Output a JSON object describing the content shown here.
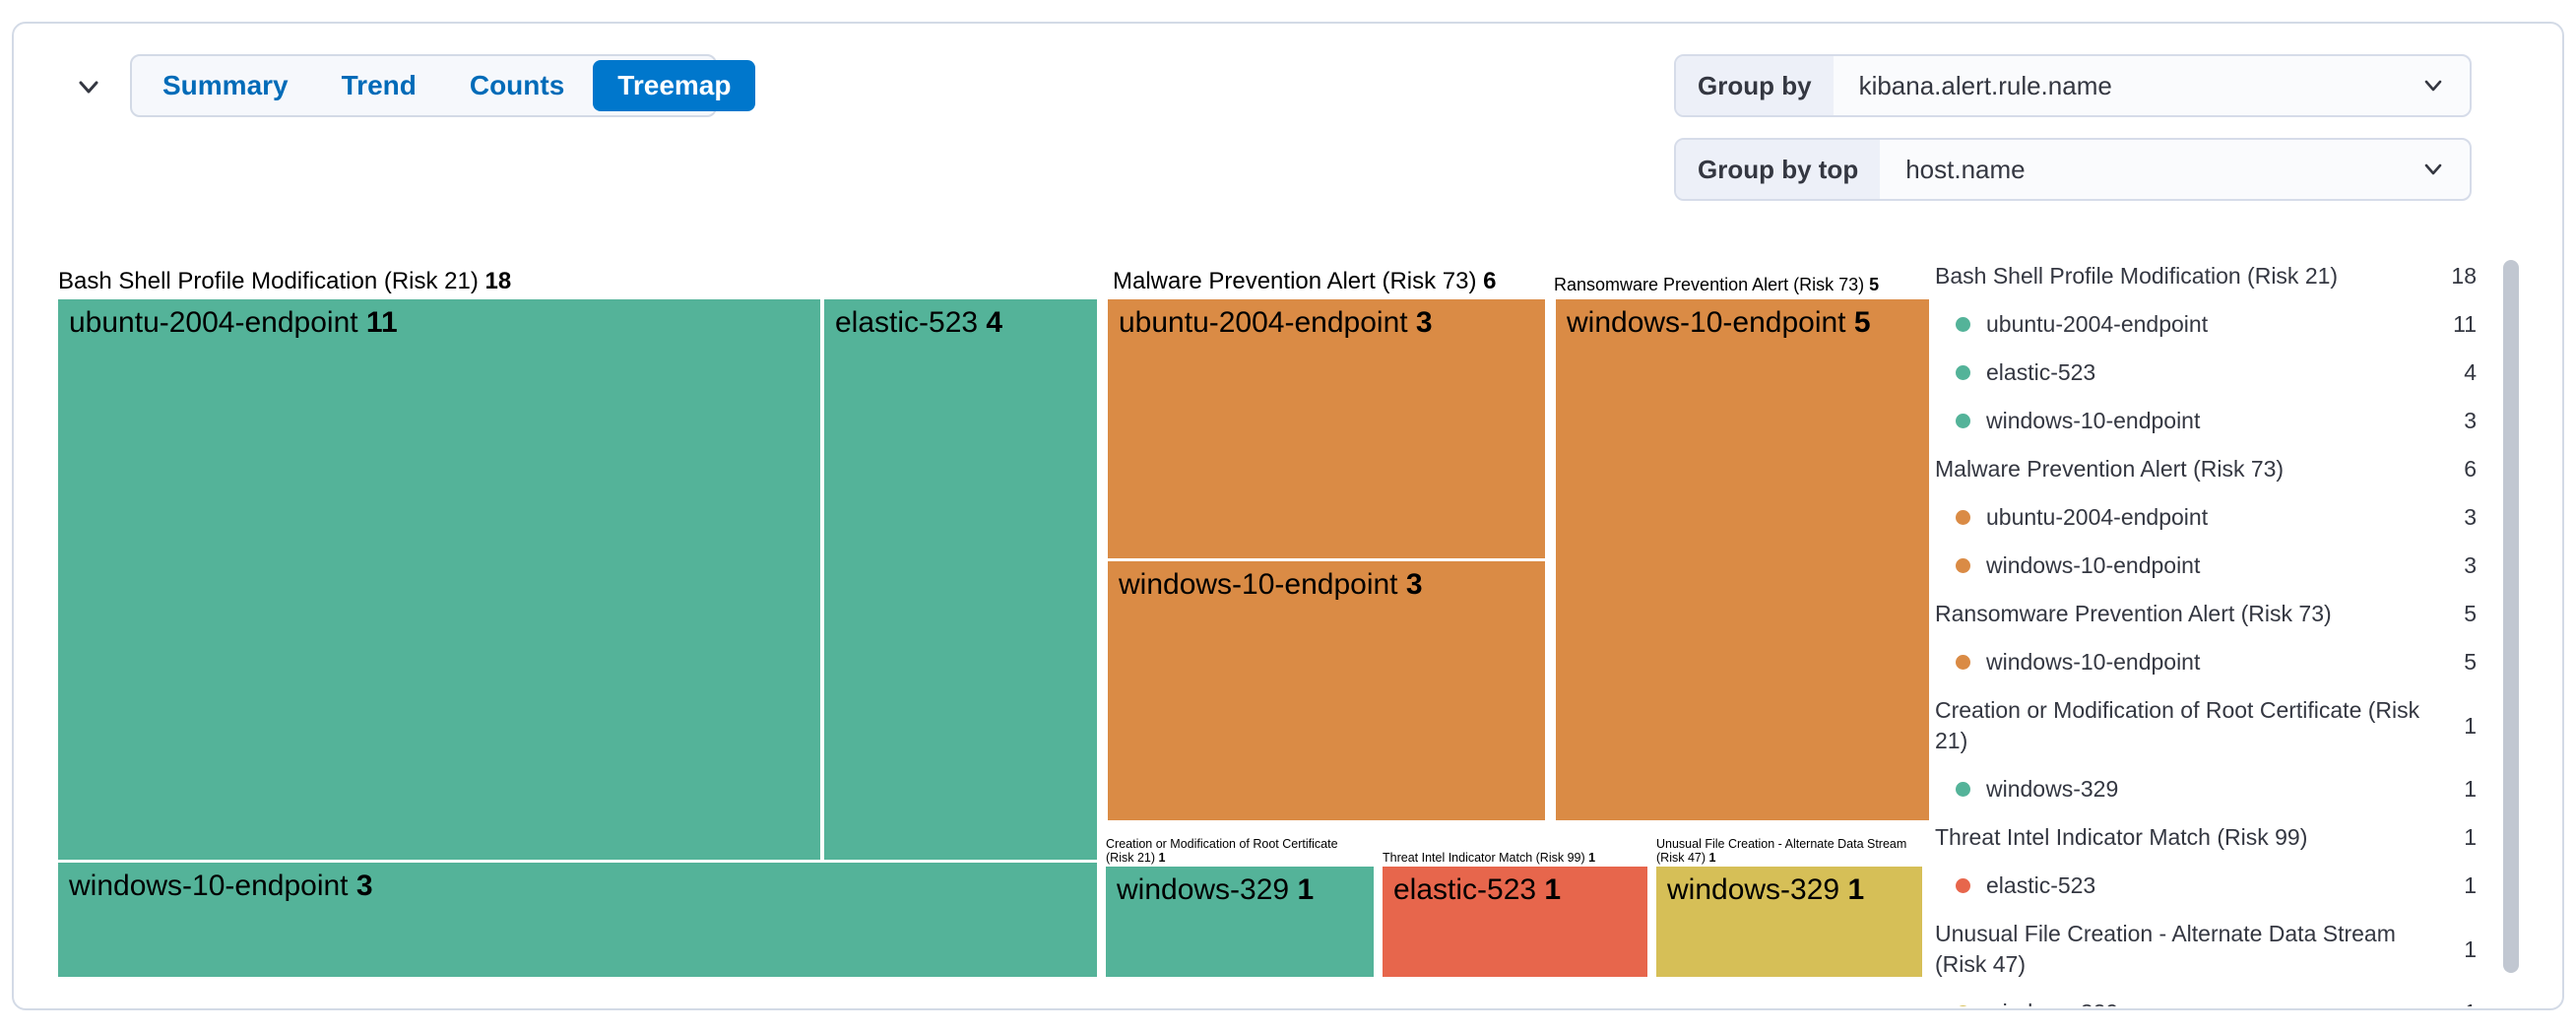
{
  "toolbar": {
    "collapse_icon": "chevron-down",
    "tabs": [
      {
        "label": "Summary",
        "active": false
      },
      {
        "label": "Trend",
        "active": false
      },
      {
        "label": "Counts",
        "active": false
      },
      {
        "label": "Treemap",
        "active": true
      }
    ]
  },
  "controls": {
    "group_by": {
      "label": "Group by",
      "value": "kibana.alert.rule.name"
    },
    "group_by_top": {
      "label": "Group by top",
      "value": "host.name"
    }
  },
  "colors": {
    "severity_low": "#54B399",
    "severity_medium": "#D6BF57",
    "severity_high": "#DA8B45",
    "severity_critical": "#E7664C",
    "primary": "#0077CC",
    "tab_text": "#006BB8",
    "panel_border": "#D3DAE6",
    "text": "#343741"
  },
  "chart_data": {
    "type": "treemap",
    "group_by_field": "kibana.alert.rule.name",
    "group_by_top_field": "host.name",
    "legend_position": "right",
    "groups": [
      {
        "label": "Bash Shell Profile Modification (Risk 21)",
        "count": 18,
        "severity": "low",
        "tiles": [
          {
            "label": "ubuntu-2004-endpoint",
            "value": 11
          },
          {
            "label": "elastic-523",
            "value": 4
          },
          {
            "label": "windows-10-endpoint",
            "value": 3
          }
        ]
      },
      {
        "label": "Malware Prevention Alert (Risk 73)",
        "count": 6,
        "severity": "high",
        "tiles": [
          {
            "label": "ubuntu-2004-endpoint",
            "value": 3
          },
          {
            "label": "windows-10-endpoint",
            "value": 3
          }
        ]
      },
      {
        "label": "Ransomware Prevention Alert (Risk 73)",
        "count": 5,
        "severity": "high",
        "tiles": [
          {
            "label": "windows-10-endpoint",
            "value": 5
          }
        ]
      },
      {
        "label": "Creation or Modification of Root Certificate (Risk 21)",
        "count": 1,
        "severity": "low",
        "tiles": [
          {
            "label": "windows-329",
            "value": 1
          }
        ]
      },
      {
        "label": "Threat Intel Indicator Match (Risk 99)",
        "count": 1,
        "severity": "critical",
        "tiles": [
          {
            "label": "elastic-523",
            "value": 1
          }
        ]
      },
      {
        "label": "Unusual File Creation - Alternate Data Stream (Risk 47)",
        "count": 1,
        "severity": "medium",
        "tiles": [
          {
            "label": "windows-329",
            "value": 1
          }
        ]
      }
    ]
  }
}
